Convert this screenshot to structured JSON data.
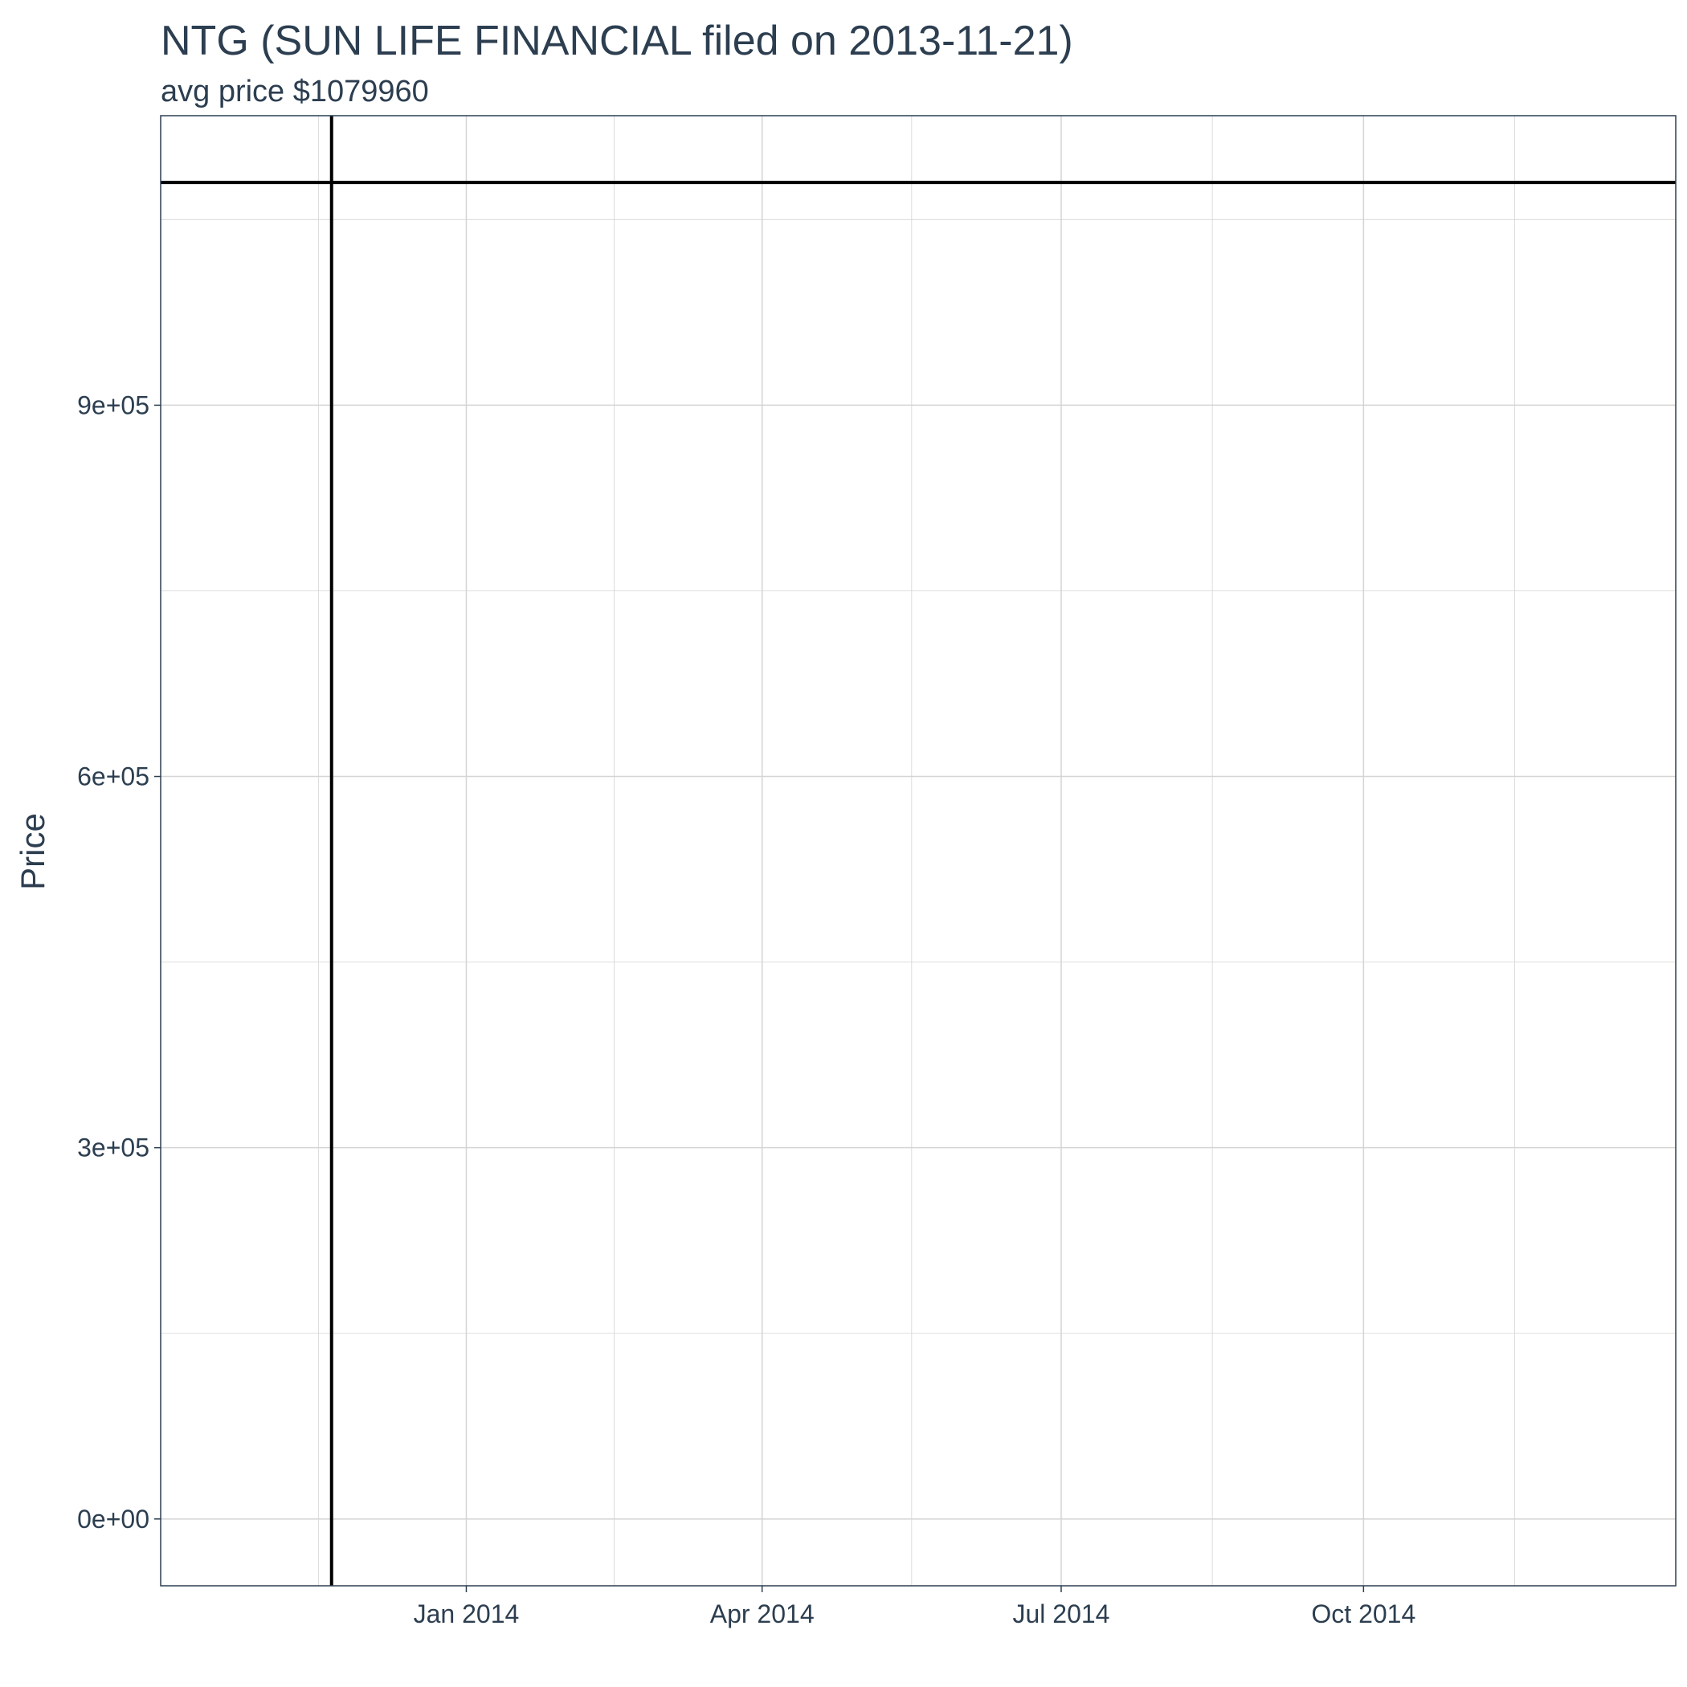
{
  "chart_data": {
    "type": "line",
    "title": "NTG (SUN LIFE FINANCIAL filed on 2013-11-21)",
    "subtitle": "avg price $1079960",
    "xlabel": "",
    "ylabel": "Price",
    "x_ticks": [
      {
        "date": "2014-01-01",
        "label": "Jan 2014"
      },
      {
        "date": "2014-04-01",
        "label": "Apr 2014"
      },
      {
        "date": "2014-07-01",
        "label": "Jul 2014"
      },
      {
        "date": "2014-10-01",
        "label": "Oct 2014"
      }
    ],
    "y_ticks": [
      {
        "value": 0,
        "label": "0e+00"
      },
      {
        "value": 300000,
        "label": "3e+05"
      },
      {
        "value": 600000,
        "label": "6e+05"
      },
      {
        "value": 900000,
        "label": "9e+05"
      }
    ],
    "xlim": [
      "2013-09-30",
      "2015-01-04"
    ],
    "ylim": [
      -53998,
      1133958
    ],
    "filing_date": "2013-11-21",
    "avg_price": 1079960,
    "grid": true,
    "colors": {
      "text": "#2c3e50",
      "grid": "#d4d4d4",
      "border": "#2c3e50",
      "reference_lines": "#000000"
    }
  }
}
